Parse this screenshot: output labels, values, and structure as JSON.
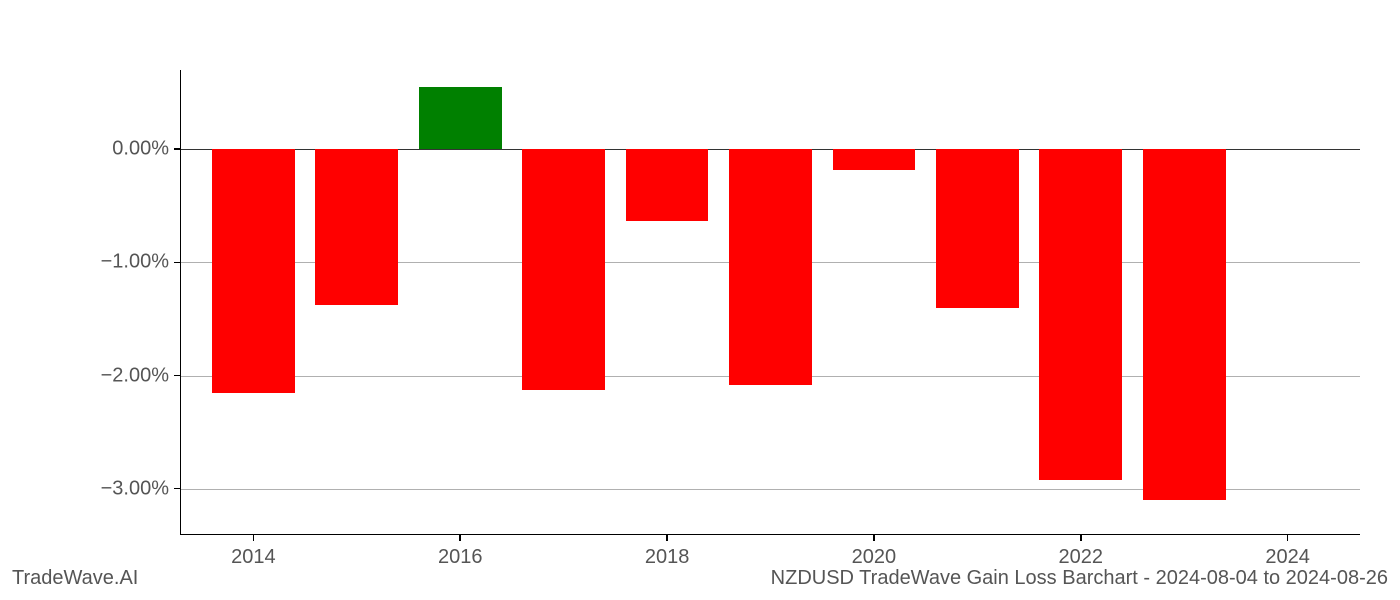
{
  "footer": {
    "left": "TradeWave.AI",
    "right": "NZDUSD TradeWave Gain Loss Barchart - 2024-08-04 to 2024-08-26"
  },
  "chart": {
    "type": "bar",
    "background_color": "#ffffff",
    "grid_color": "#b0b0b0",
    "axis_color": "#000000",
    "label_color": "#555555",
    "label_fontsize": 20,
    "positive_color": "#008000",
    "negative_color": "#ff0000",
    "ylim": [
      -3.4,
      0.7
    ],
    "y_ticks": [
      {
        "value": 0.0,
        "label": "0.00%"
      },
      {
        "value": -1.0,
        "label": "−1.00%"
      },
      {
        "value": -2.0,
        "label": "−2.00%"
      },
      {
        "value": -3.0,
        "label": "−3.00%"
      }
    ],
    "x_ticks": [
      {
        "year": 2014,
        "label": "2014"
      },
      {
        "year": 2016,
        "label": "2016"
      },
      {
        "year": 2018,
        "label": "2018"
      },
      {
        "year": 2020,
        "label": "2020"
      },
      {
        "year": 2022,
        "label": "2022"
      },
      {
        "year": 2024,
        "label": "2024"
      }
    ],
    "xlim": [
      2013.3,
      2024.7
    ],
    "bar_width": 0.8,
    "data": [
      {
        "year": 2014,
        "value": -2.15
      },
      {
        "year": 2015,
        "value": -1.38
      },
      {
        "year": 2016,
        "value": 0.55
      },
      {
        "year": 2017,
        "value": -2.13
      },
      {
        "year": 2018,
        "value": -0.63
      },
      {
        "year": 2019,
        "value": -2.08
      },
      {
        "year": 2020,
        "value": -0.18
      },
      {
        "year": 2021,
        "value": -1.4
      },
      {
        "year": 2022,
        "value": -2.92
      },
      {
        "year": 2023,
        "value": -3.1
      }
    ]
  }
}
